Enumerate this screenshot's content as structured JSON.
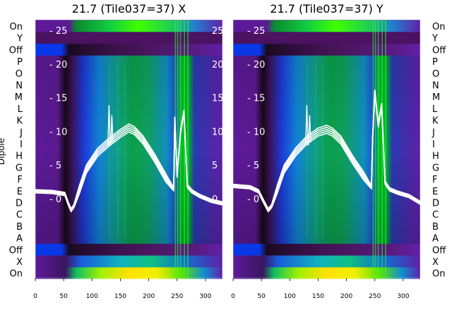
{
  "chart_data": [
    {
      "type": "heatmap",
      "title": "21.7 (Tile037=37) X",
      "ylabel": "Dipole",
      "rows": [
        "On",
        "Y",
        "Off",
        "P",
        "O",
        "N",
        "M",
        "L",
        "K",
        "J",
        "I",
        "H",
        "G",
        "F",
        "E",
        "D",
        "C",
        "B",
        "A",
        "Off",
        "X",
        "On"
      ],
      "xlim": [
        0,
        330
      ],
      "xticks": [
        0,
        50,
        100,
        150,
        200,
        250,
        300
      ],
      "overlay_ylim": [
        -3,
        28
      ],
      "overlay_yticks": [
        0,
        5,
        10,
        15,
        20,
        25
      ],
      "overlay_line": {
        "x": [
          0,
          30,
          52,
          58,
          63,
          68,
          78,
          90,
          110,
          130,
          150,
          165,
          175,
          190,
          210,
          230,
          244,
          246,
          250,
          256,
          262,
          268,
          276,
          290,
          310,
          330
        ],
        "y": [
          1.2,
          1.1,
          0.8,
          -0.6,
          -1.6,
          -1.0,
          1.5,
          4.5,
          7.0,
          8.5,
          9.8,
          10.6,
          10.2,
          8.8,
          6.2,
          3.2,
          1.5,
          12.0,
          3.5,
          10.0,
          13.0,
          2.0,
          1.2,
          0.5,
          -0.2,
          -0.6
        ]
      }
    },
    {
      "type": "heatmap",
      "title": "21.7 (Tile037=37) Y",
      "ylabel": "",
      "rows": [
        "On",
        "Y",
        "Off",
        "P",
        "O",
        "N",
        "M",
        "L",
        "K",
        "J",
        "I",
        "H",
        "G",
        "F",
        "E",
        "D",
        "C",
        "B",
        "A",
        "Off",
        "X",
        "On"
      ],
      "xlim": [
        0,
        330
      ],
      "xticks": [
        0,
        50,
        100,
        150,
        200,
        250,
        300
      ],
      "overlay_ylim": [
        -3,
        28
      ],
      "overlay_yticks": [
        0,
        5,
        10,
        15,
        20,
        25
      ],
      "overlay_line": {
        "x": [
          0,
          30,
          45,
          55,
          62,
          68,
          78,
          90,
          110,
          130,
          150,
          165,
          175,
          190,
          210,
          230,
          244,
          246,
          250,
          256,
          262,
          268,
          276,
          290,
          310,
          330
        ],
        "y": [
          2.0,
          1.8,
          1.2,
          -0.5,
          -1.6,
          -1.0,
          1.5,
          4.5,
          7.0,
          8.8,
          10.0,
          10.4,
          10.0,
          8.8,
          6.0,
          3.5,
          1.8,
          9.0,
          16.0,
          11.0,
          14.0,
          2.5,
          1.5,
          1.0,
          0.5,
          -0.5
        ]
      }
    }
  ]
}
